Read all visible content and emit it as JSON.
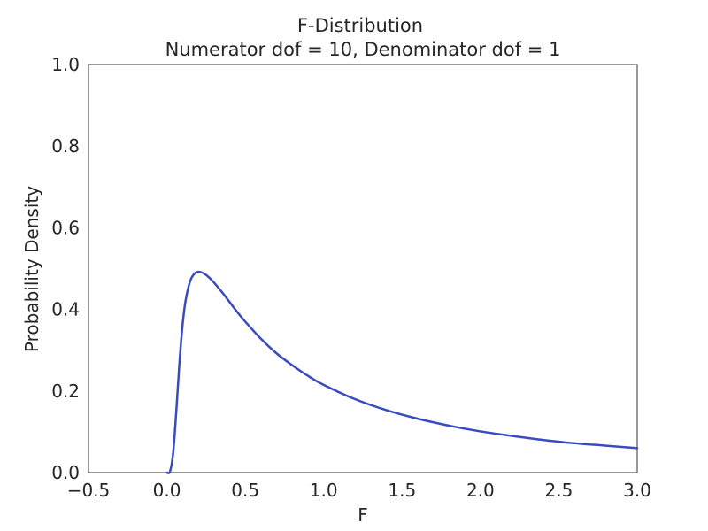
{
  "chart_data": {
    "type": "line",
    "title": "F-Distribution",
    "subtitle": "Numerator dof = 10, Denominator dof = 1",
    "xlabel": "F",
    "ylabel": "Probability Density",
    "xlim": [
      -0.5,
      3.0
    ],
    "ylim": [
      0.0,
      1.0
    ],
    "xticks": [
      -0.5,
      0.0,
      0.5,
      1.0,
      1.5,
      2.0,
      2.5,
      3.0
    ],
    "xtick_labels": [
      "−0.5",
      "0.0",
      "0.5",
      "1.0",
      "1.5",
      "2.0",
      "2.5",
      "3.0"
    ],
    "yticks": [
      0.0,
      0.2,
      0.4,
      0.6,
      0.8,
      1.0
    ],
    "ytick_labels": [
      "0.0",
      "0.2",
      "0.4",
      "0.6",
      "0.8",
      "1.0"
    ],
    "grid": false,
    "legend": "none",
    "line_color": "#3a4bbf",
    "series": [
      {
        "x": [
          0.0,
          0.02,
          0.04,
          0.06,
          0.08,
          0.1,
          0.12,
          0.15,
          0.18,
          0.21,
          0.24,
          0.27,
          0.3,
          0.35,
          0.4,
          0.45,
          0.5,
          0.6,
          0.7,
          0.8,
          0.9,
          1.0,
          1.2,
          1.4,
          1.6,
          1.8,
          2.0,
          2.2,
          2.4,
          2.6,
          2.8,
          3.0
        ],
        "y": [
          0.0,
          0.003,
          0.048,
          0.15,
          0.268,
          0.362,
          0.423,
          0.471,
          0.489,
          0.492,
          0.487,
          0.478,
          0.466,
          0.443,
          0.418,
          0.393,
          0.37,
          0.328,
          0.292,
          0.263,
          0.237,
          0.215,
          0.18,
          0.153,
          0.132,
          0.115,
          0.101,
          0.09,
          0.08,
          0.072,
          0.066,
          0.06
        ]
      }
    ]
  }
}
